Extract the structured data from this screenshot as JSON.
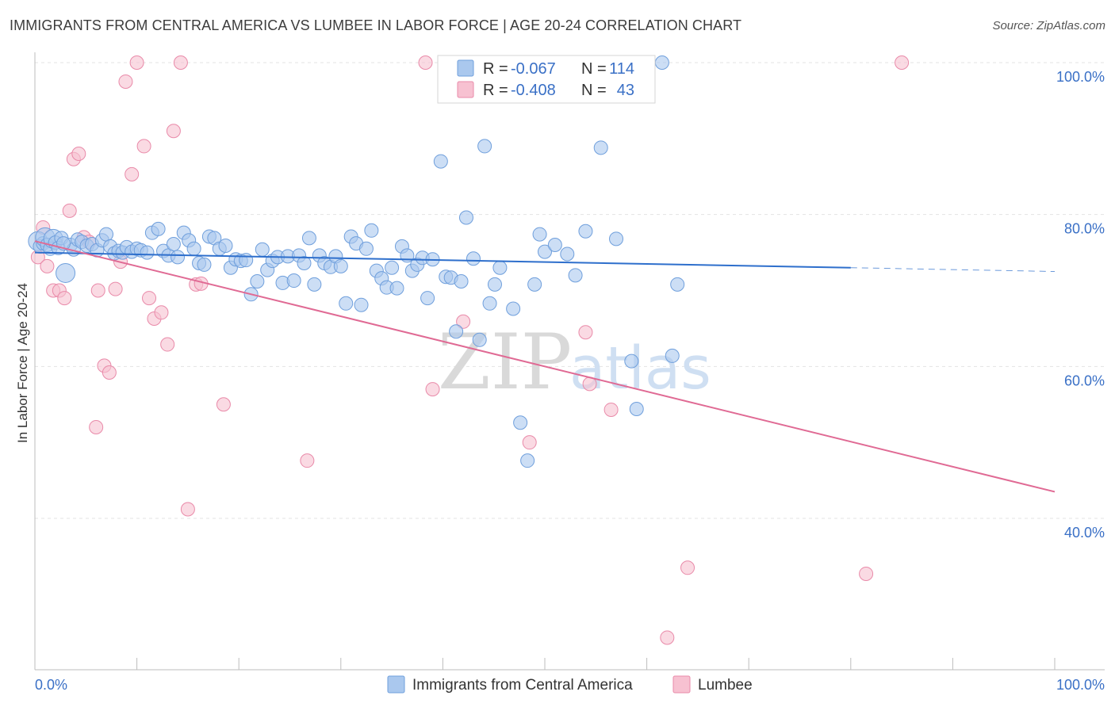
{
  "header": {
    "title": "IMMIGRANTS FROM CENTRAL AMERICA VS LUMBEE IN LABOR FORCE | AGE 20-24 CORRELATION CHART",
    "source": "Source: ZipAtlas.com"
  },
  "watermark": {
    "zip": "ZIP",
    "atlas": "atlas"
  },
  "colors": {
    "blue_fill": "#aac8ee",
    "blue_stroke": "#6f9fdc",
    "blue_line": "#2e6fcc",
    "pink_fill": "#f7c1d1",
    "pink_stroke": "#e98aa9",
    "pink_line": "#e06a94",
    "axis_text": "#3a70c6",
    "grid": "#e3e3e3"
  },
  "legend": {
    "rows": [
      {
        "r_label": "R =",
        "r_value": "-0.067",
        "n_label": "N =",
        "n_value": "114"
      },
      {
        "r_label": "R =",
        "r_value": "-0.408",
        "n_label": "N =",
        "n_value": "43"
      }
    ]
  },
  "bottom_legend": [
    "Immigrants from Central America",
    "Lumbee"
  ],
  "chart_data": {
    "type": "scatter",
    "title": "IMMIGRANTS FROM CENTRAL AMERICA VS LUMBEE IN LABOR FORCE | AGE 20-24 CORRELATION CHART",
    "xlabel": "",
    "ylabel": "In Labor Force | Age 20-24",
    "xlim": [
      0,
      100
    ],
    "ylim": [
      20,
      101
    ],
    "x_tick_labels": [
      "0.0%",
      "100.0%"
    ],
    "y_tick_labels": [
      "40.0%",
      "60.0%",
      "80.0%",
      "100.0%"
    ],
    "y_ticks": [
      40,
      60,
      80,
      100
    ],
    "grid": true,
    "legend_position": "top-center",
    "series": [
      {
        "name": "Immigrants from Central America",
        "r": -0.067,
        "n": 114,
        "trend": {
          "x": [
            0,
            80
          ],
          "y": [
            75.0,
            73.0
          ],
          "dashed_to": [
            100,
            72.5
          ]
        },
        "points": [
          [
            0.3,
            76.5
          ],
          [
            0.5,
            75.8
          ],
          [
            0.8,
            76.2
          ],
          [
            1.0,
            77.0
          ],
          [
            1.2,
            76.0
          ],
          [
            1.5,
            75.5
          ],
          [
            1.8,
            76.8
          ],
          [
            2.0,
            76.3
          ],
          [
            2.3,
            75.6
          ],
          [
            2.6,
            76.9
          ],
          [
            3.0,
            72.3
          ],
          [
            3.5,
            76.0
          ],
          [
            3.8,
            75.4
          ],
          [
            4.2,
            76.7
          ],
          [
            4.6,
            76.4
          ],
          [
            5.1,
            75.9
          ],
          [
            5.6,
            76.1
          ],
          [
            6.1,
            75.3
          ],
          [
            6.6,
            76.6
          ],
          [
            7.0,
            77.4
          ],
          [
            7.4,
            75.8
          ],
          [
            7.8,
            74.9
          ],
          [
            8.2,
            75.2
          ],
          [
            8.6,
            75.0
          ],
          [
            9.0,
            75.7
          ],
          [
            9.5,
            75.1
          ],
          [
            10.0,
            75.5
          ],
          [
            10.4,
            75.3
          ],
          [
            11.0,
            75.0
          ],
          [
            11.5,
            77.6
          ],
          [
            12.1,
            78.1
          ],
          [
            12.6,
            75.2
          ],
          [
            13.1,
            74.6
          ],
          [
            13.6,
            76.1
          ],
          [
            14.0,
            74.4
          ],
          [
            14.6,
            77.6
          ],
          [
            15.1,
            76.6
          ],
          [
            15.6,
            75.5
          ],
          [
            16.1,
            73.6
          ],
          [
            16.6,
            73.4
          ],
          [
            17.1,
            77.1
          ],
          [
            17.6,
            76.9
          ],
          [
            18.1,
            75.5
          ],
          [
            18.7,
            75.9
          ],
          [
            19.2,
            73.0
          ],
          [
            19.7,
            74.1
          ],
          [
            20.2,
            73.9
          ],
          [
            20.7,
            74.0
          ],
          [
            21.2,
            69.5
          ],
          [
            21.8,
            71.2
          ],
          [
            22.3,
            75.4
          ],
          [
            22.8,
            72.7
          ],
          [
            23.3,
            73.9
          ],
          [
            23.8,
            74.4
          ],
          [
            24.3,
            71.0
          ],
          [
            24.8,
            74.5
          ],
          [
            25.4,
            71.3
          ],
          [
            25.9,
            74.6
          ],
          [
            26.4,
            73.6
          ],
          [
            26.9,
            76.9
          ],
          [
            27.4,
            70.8
          ],
          [
            27.9,
            74.6
          ],
          [
            28.4,
            73.6
          ],
          [
            29.0,
            73.1
          ],
          [
            29.5,
            74.5
          ],
          [
            30.0,
            73.2
          ],
          [
            30.5,
            68.3
          ],
          [
            31.0,
            77.1
          ],
          [
            31.5,
            76.2
          ],
          [
            32.0,
            68.1
          ],
          [
            32.5,
            75.5
          ],
          [
            33.0,
            77.9
          ],
          [
            33.5,
            72.6
          ],
          [
            34.0,
            71.6
          ],
          [
            34.5,
            70.4
          ],
          [
            35.0,
            73.0
          ],
          [
            35.5,
            70.3
          ],
          [
            36.0,
            75.8
          ],
          [
            36.5,
            74.6
          ],
          [
            37.0,
            72.6
          ],
          [
            37.5,
            73.4
          ],
          [
            38.0,
            74.3
          ],
          [
            38.5,
            69.0
          ],
          [
            39.0,
            74.1
          ],
          [
            39.8,
            87.0
          ],
          [
            40.3,
            71.8
          ],
          [
            40.8,
            71.7
          ],
          [
            41.3,
            64.6
          ],
          [
            41.8,
            71.2
          ],
          [
            42.3,
            79.6
          ],
          [
            43.0,
            74.2
          ],
          [
            43.6,
            63.5
          ],
          [
            44.1,
            89.0
          ],
          [
            44.6,
            68.3
          ],
          [
            45.1,
            70.8
          ],
          [
            45.6,
            73.0
          ],
          [
            46.2,
            100.0
          ],
          [
            46.9,
            67.6
          ],
          [
            47.6,
            52.6
          ],
          [
            48.3,
            47.6
          ],
          [
            49.0,
            70.8
          ],
          [
            49.5,
            77.4
          ],
          [
            50.0,
            75.1
          ],
          [
            51.0,
            76.0
          ],
          [
            52.2,
            74.8
          ],
          [
            53.0,
            72.0
          ],
          [
            54.0,
            77.8
          ],
          [
            55.5,
            88.8
          ],
          [
            57.0,
            76.8
          ],
          [
            58.5,
            60.7
          ],
          [
            59.0,
            54.4
          ],
          [
            60.0,
            100.0
          ],
          [
            61.5,
            100.0
          ],
          [
            62.5,
            61.4
          ],
          [
            63.0,
            70.8
          ],
          [
            2.8,
            76.2
          ]
        ]
      },
      {
        "name": "Lumbee",
        "r": -0.408,
        "n": 43,
        "trend": {
          "x": [
            0,
            100
          ],
          "y": [
            76.5,
            43.5
          ]
        },
        "points": [
          [
            0.3,
            74.4
          ],
          [
            0.8,
            78.3
          ],
          [
            1.2,
            73.2
          ],
          [
            1.8,
            70.0
          ],
          [
            2.4,
            70.0
          ],
          [
            2.9,
            69.0
          ],
          [
            3.4,
            80.5
          ],
          [
            3.8,
            87.3
          ],
          [
            4.3,
            88.0
          ],
          [
            4.8,
            77.0
          ],
          [
            5.3,
            76.4
          ],
          [
            6.0,
            52.0
          ],
          [
            6.2,
            70.0
          ],
          [
            6.8,
            60.1
          ],
          [
            7.3,
            59.2
          ],
          [
            7.9,
            70.2
          ],
          [
            8.4,
            73.8
          ],
          [
            8.9,
            97.5
          ],
          [
            9.5,
            85.3
          ],
          [
            10.0,
            100.0
          ],
          [
            10.7,
            89.0
          ],
          [
            11.2,
            69.0
          ],
          [
            11.7,
            66.3
          ],
          [
            12.4,
            67.1
          ],
          [
            13.0,
            62.9
          ],
          [
            13.6,
            91.0
          ],
          [
            14.3,
            100.0
          ],
          [
            15.0,
            41.2
          ],
          [
            15.8,
            70.8
          ],
          [
            16.3,
            70.9
          ],
          [
            18.5,
            55.0
          ],
          [
            26.7,
            47.6
          ],
          [
            38.3,
            100.0
          ],
          [
            39.0,
            57.0
          ],
          [
            42.0,
            65.9
          ],
          [
            48.5,
            50.0
          ],
          [
            54.0,
            64.5
          ],
          [
            54.4,
            57.7
          ],
          [
            56.5,
            54.3
          ],
          [
            62.0,
            24.3
          ],
          [
            64.0,
            33.5
          ],
          [
            81.5,
            32.7
          ],
          [
            85.0,
            100.0
          ]
        ]
      }
    ]
  }
}
